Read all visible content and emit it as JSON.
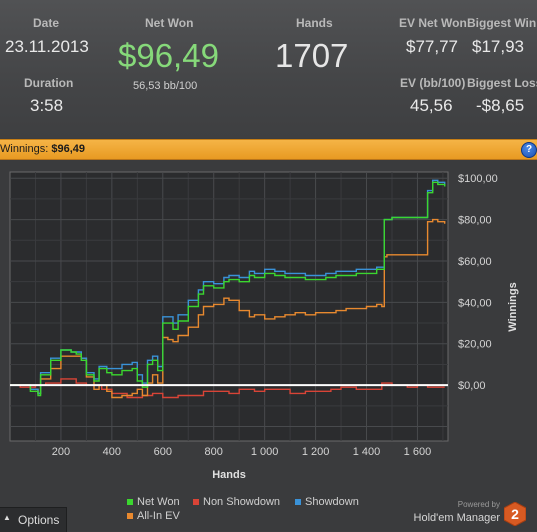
{
  "stats": {
    "date_label": "Date",
    "date_value": "23.11.2013",
    "duration_label": "Duration",
    "duration_value": "3:58",
    "net_won_label": "Net Won",
    "net_won_value": "$96,49",
    "net_won_bb": "56,53 bb/100",
    "hands_label": "Hands",
    "hands_value": "1707",
    "ev_net_won_label": "EV Net Won",
    "ev_net_won_value": "$77,77",
    "biggest_win_label": "Biggest Win",
    "biggest_win_value": "$17,93",
    "ev_bb_label": "EV (bb/100)",
    "ev_bb_value": "45,56",
    "biggest_loss_label": "Biggest Loss",
    "biggest_loss_value": "-$8,65"
  },
  "winnings_bar": {
    "label": "Winnings:",
    "value": "$96,49",
    "help": "?"
  },
  "colors": {
    "net_won": "#3bd62f",
    "non_showdown": "#d94437",
    "showdown": "#3a92d8",
    "all_in_ev": "#e8892f",
    "accent": "#f0a834"
  },
  "chart_data": {
    "type": "line",
    "xlabel": "Hands",
    "ylabel": "Winnings",
    "xlim": [
      0,
      1720
    ],
    "ylim": [
      -27,
      103
    ],
    "x_ticks": [
      200,
      400,
      600,
      800,
      1000,
      1200,
      1400,
      1600
    ],
    "x_tick_labels": [
      "200",
      "400",
      "600",
      "800",
      "1 000",
      "1 200",
      "1 400",
      "1 600"
    ],
    "y_ticks": [
      0,
      20,
      40,
      60,
      80,
      100
    ],
    "y_tick_labels": [
      "$0,00",
      "$20,00",
      "$40,00",
      "$60,00",
      "$80,00",
      "$100,00"
    ],
    "grid": true,
    "legend_position": "bottom",
    "series": [
      {
        "name": "Net Won",
        "x": [
          0,
          80,
          110,
          120,
          160,
          200,
          240,
          260,
          280,
          300,
          330,
          350,
          380,
          400,
          440,
          480,
          500,
          520,
          540,
          560,
          580,
          600,
          620,
          640,
          660,
          700,
          740,
          760,
          800,
          840,
          860,
          900,
          940,
          960,
          1000,
          1040,
          1080,
          1120,
          1160,
          1200,
          1240,
          1280,
          1320,
          1360,
          1400,
          1440,
          1460,
          1470,
          1480,
          1500,
          1540,
          1580,
          1620,
          1640,
          1660,
          1680,
          1707
        ],
        "y": [
          0,
          -3,
          -5,
          5,
          12,
          17,
          16,
          15,
          12,
          5,
          2,
          8,
          6,
          5,
          7,
          8,
          2,
          -1,
          10,
          12,
          7,
          30,
          30,
          27,
          31,
          38,
          44,
          48,
          47,
          50,
          51,
          50,
          53,
          52,
          54,
          53,
          52,
          52,
          51,
          51,
          52,
          53,
          53,
          54,
          54,
          56,
          56,
          80,
          80,
          81,
          81,
          81,
          81,
          93,
          98,
          97,
          96
        ]
      },
      {
        "name": "Non Showdown",
        "x": [
          0,
          40,
          100,
          140,
          200,
          260,
          300,
          360,
          400,
          460,
          520,
          560,
          600,
          660,
          700,
          760,
          800,
          860,
          900,
          960,
          1000,
          1060,
          1100,
          1160,
          1200,
          1260,
          1300,
          1360,
          1400,
          1460,
          1500,
          1560,
          1600,
          1640,
          1680,
          1707
        ],
        "y": [
          0,
          -1,
          0,
          1,
          3,
          1,
          0,
          -2,
          -4,
          -6,
          -5,
          -4,
          -6,
          -5,
          -5,
          -3,
          -3,
          -4,
          -2,
          -3,
          -2,
          -2,
          -4,
          -3,
          -3,
          -2,
          -1,
          -2,
          -2,
          1,
          0,
          -1,
          0,
          -1,
          -1,
          -1
        ]
      },
      {
        "name": "Showdown",
        "x": [
          0,
          80,
          110,
          120,
          160,
          200,
          240,
          280,
          300,
          330,
          350,
          380,
          400,
          440,
          480,
          500,
          520,
          540,
          560,
          580,
          600,
          620,
          640,
          660,
          700,
          740,
          760,
          800,
          840,
          860,
          900,
          940,
          960,
          1000,
          1040,
          1080,
          1120,
          1160,
          1200,
          1240,
          1280,
          1320,
          1360,
          1400,
          1440,
          1460,
          1470,
          1480,
          1500,
          1540,
          1580,
          1620,
          1640,
          1660,
          1680,
          1707
        ],
        "y": [
          0,
          -2,
          -4,
          6,
          13,
          17,
          16,
          13,
          6,
          3,
          9,
          8,
          8,
          10,
          11,
          5,
          1,
          12,
          14,
          9,
          33,
          33,
          30,
          34,
          41,
          46,
          50,
          49,
          52,
          53,
          52,
          55,
          54,
          56,
          55,
          54,
          54,
          53,
          53,
          54,
          55,
          55,
          56,
          56,
          57,
          57,
          80,
          80,
          81,
          81,
          81,
          81,
          94,
          99,
          98,
          97
        ]
      },
      {
        "name": "All-In EV",
        "x": [
          0,
          80,
          110,
          120,
          160,
          200,
          240,
          280,
          300,
          330,
          350,
          380,
          400,
          440,
          480,
          500,
          520,
          540,
          560,
          580,
          600,
          620,
          640,
          660,
          700,
          740,
          760,
          800,
          840,
          860,
          900,
          940,
          960,
          1000,
          1040,
          1080,
          1120,
          1160,
          1200,
          1240,
          1280,
          1320,
          1360,
          1400,
          1440,
          1460,
          1470,
          1480,
          1500,
          1540,
          1580,
          1620,
          1640,
          1660,
          1680,
          1707
        ],
        "y": [
          0,
          -2,
          -4,
          3,
          8,
          14,
          14,
          13,
          4,
          -2,
          0,
          -3,
          -6,
          -5,
          -4,
          -2,
          -5,
          1,
          5,
          1,
          23,
          22,
          21,
          24,
          28,
          34,
          38,
          39,
          42,
          41,
          36,
          33,
          34,
          32,
          33,
          34,
          35,
          34,
          35,
          35,
          36,
          37,
          37,
          38,
          39,
          38,
          62,
          63,
          63,
          63,
          63,
          63,
          79,
          80,
          79,
          78
        ]
      }
    ]
  },
  "legend": [
    {
      "name": "Net Won",
      "color": "#3bd62f"
    },
    {
      "name": "Non Showdown",
      "color": "#d94437"
    },
    {
      "name": "Showdown",
      "color": "#3a92d8"
    },
    {
      "name": "All-In EV",
      "color": "#e8892f"
    }
  ],
  "options_label": "Options",
  "brand": {
    "powered_by": "Powered by",
    "name": "Hold'em Manager",
    "logo_text": "2"
  }
}
